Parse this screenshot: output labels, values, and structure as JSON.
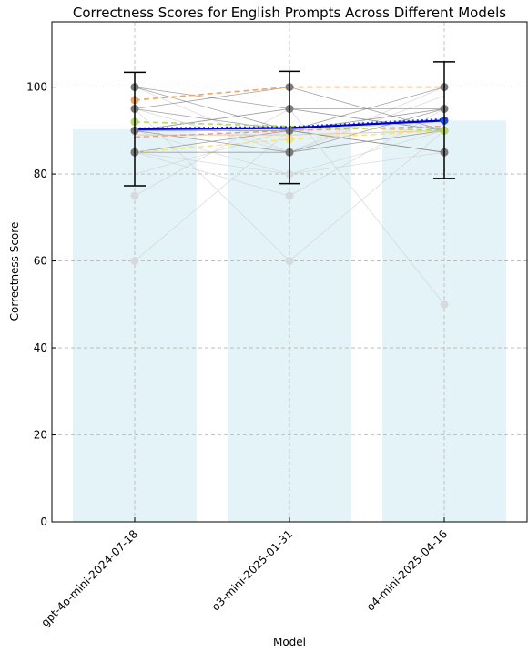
{
  "chart_data": {
    "type": "bar",
    "title": "Correctness Scores for English Prompts Across Different Models",
    "xlabel": "Model",
    "ylabel": "Correctness Score",
    "categories": [
      "gpt-4o-mini-2024-07-18",
      "o3-mini-2025-01-31",
      "o4-mini-2025-04-16"
    ],
    "ylim": [
      0,
      115
    ],
    "yticks": [
      0,
      20,
      40,
      60,
      80,
      100
    ],
    "grid": true,
    "bar_color": "#e4f3f7",
    "mean_values": [
      90.3,
      90.6,
      92.3
    ],
    "error_bars": [
      {
        "low": 77.3,
        "high": 103.4
      },
      {
        "low": 77.8,
        "high": 103.6
      },
      {
        "low": 79.0,
        "high": 105.8
      }
    ],
    "series": [
      {
        "color": "#0000cc",
        "dash": "solid",
        "width": 2.2,
        "values": [
          90.3,
          90.6,
          92.3
        ]
      },
      {
        "color": "#1f4fe0",
        "dash": "dot",
        "width": 2.4,
        "values": [
          90.5,
          90.8,
          92.6
        ]
      },
      {
        "color": "#f2a55c",
        "dash": "dash",
        "width": 1.6,
        "values": [
          97,
          100,
          100
        ]
      },
      {
        "color": "#b8d96a",
        "dash": "dash",
        "width": 1.6,
        "values": [
          92,
          91,
          90
        ]
      },
      {
        "color": "#e89a9a",
        "dash": "dash",
        "width": 1.4,
        "values": [
          88.5,
          90,
          91
        ]
      },
      {
        "color": "#f3e37a",
        "dash": "dash",
        "width": 1.4,
        "values": [
          85,
          88,
          90
        ]
      },
      {
        "color": "#f0c9a0",
        "dash": "solid",
        "width": 1.0,
        "values": [
          89,
          89,
          90
        ]
      },
      {
        "color": "#8a8a8a",
        "dash": "solid",
        "width": 0.8,
        "values": [
          100,
          95,
          95
        ]
      },
      {
        "color": "#8a8a8a",
        "dash": "solid",
        "width": 0.8,
        "values": [
          95,
          90,
          100
        ]
      },
      {
        "color": "#8a8a8a",
        "dash": "solid",
        "width": 0.8,
        "values": [
          90,
          85,
          90
        ]
      },
      {
        "color": "#8a8a8a",
        "dash": "solid",
        "width": 0.8,
        "values": [
          85,
          90,
          85
        ]
      },
      {
        "color": "#8a8a8a",
        "dash": "solid",
        "width": 0.8,
        "values": [
          90,
          95,
          90
        ]
      },
      {
        "color": "#8a8a8a",
        "dash": "solid",
        "width": 0.8,
        "values": [
          85,
          85,
          95
        ]
      },
      {
        "color": "#8a8a8a",
        "dash": "solid",
        "width": 0.8,
        "values": [
          95,
          100,
          90
        ]
      },
      {
        "color": "#8a8a8a",
        "dash": "solid",
        "width": 0.8,
        "values": [
          100,
          90,
          95
        ]
      },
      {
        "color": "#8a8a8a",
        "dash": "solid",
        "width": 0.8,
        "values": [
          90,
          90,
          85
        ]
      },
      {
        "color": "#cfd3d6",
        "dash": "solid",
        "width": 0.8,
        "values": [
          75,
          95,
          90
        ]
      },
      {
        "color": "#cfd3d6",
        "dash": "solid",
        "width": 0.8,
        "values": [
          60,
          90,
          95
        ]
      },
      {
        "color": "#cfd3d6",
        "dash": "solid",
        "width": 0.8,
        "values": [
          85,
          75,
          95
        ]
      },
      {
        "color": "#cfd3d6",
        "dash": "solid",
        "width": 0.8,
        "values": [
          95,
          60,
          90
        ]
      },
      {
        "color": "#cfd3d6",
        "dash": "solid",
        "width": 0.8,
        "values": [
          90,
          95,
          50
        ]
      },
      {
        "color": "#cfd3d6",
        "dash": "solid",
        "width": 0.8,
        "values": [
          85,
          80,
          90
        ]
      },
      {
        "color": "#cfd3d6",
        "dash": "solid",
        "width": 0.8,
        "values": [
          100,
          85,
          98
        ]
      },
      {
        "color": "#cfd3d6",
        "dash": "solid",
        "width": 0.8,
        "values": [
          80,
          90,
          92
        ]
      },
      {
        "color": "#cfd3d6",
        "dash": "solid",
        "width": 0.8,
        "values": [
          90,
          80,
          85
        ]
      },
      {
        "color": "#cfd3d6",
        "dash": "solid",
        "width": 0.8,
        "values": [
          95,
          85,
          100
        ]
      }
    ],
    "points": [
      {
        "x": 0,
        "y": 100,
        "color": "#7a7a7a"
      },
      {
        "x": 0,
        "y": 95,
        "color": "#7a7a7a"
      },
      {
        "x": 0,
        "y": 90,
        "color": "#7a7a7a"
      },
      {
        "x": 0,
        "y": 85,
        "color": "#7a7a7a"
      },
      {
        "x": 0,
        "y": 97,
        "color": "#f2a55c"
      },
      {
        "x": 0,
        "y": 92,
        "color": "#b8d96a"
      },
      {
        "x": 0,
        "y": 75,
        "color": "#d6dadd"
      },
      {
        "x": 0,
        "y": 60,
        "color": "#d6dadd"
      },
      {
        "x": 1,
        "y": 100,
        "color": "#7a7a7a"
      },
      {
        "x": 1,
        "y": 95,
        "color": "#7a7a7a"
      },
      {
        "x": 1,
        "y": 90,
        "color": "#7a7a7a"
      },
      {
        "x": 1,
        "y": 85,
        "color": "#7a7a7a"
      },
      {
        "x": 1,
        "y": 88,
        "color": "#f3e37a"
      },
      {
        "x": 1,
        "y": 80,
        "color": "#d6dadd"
      },
      {
        "x": 1,
        "y": 75,
        "color": "#d6dadd"
      },
      {
        "x": 1,
        "y": 60,
        "color": "#d6dadd"
      },
      {
        "x": 2,
        "y": 100,
        "color": "#7a7a7a"
      },
      {
        "x": 2,
        "y": 95,
        "color": "#7a7a7a"
      },
      {
        "x": 2,
        "y": 90,
        "color": "#7a7a7a"
      },
      {
        "x": 2,
        "y": 85,
        "color": "#7a7a7a"
      },
      {
        "x": 2,
        "y": 92.3,
        "color": "#1f4fe0"
      },
      {
        "x": 2,
        "y": 90,
        "color": "#b8d96a"
      },
      {
        "x": 2,
        "y": 50,
        "color": "#d6dadd"
      }
    ]
  }
}
